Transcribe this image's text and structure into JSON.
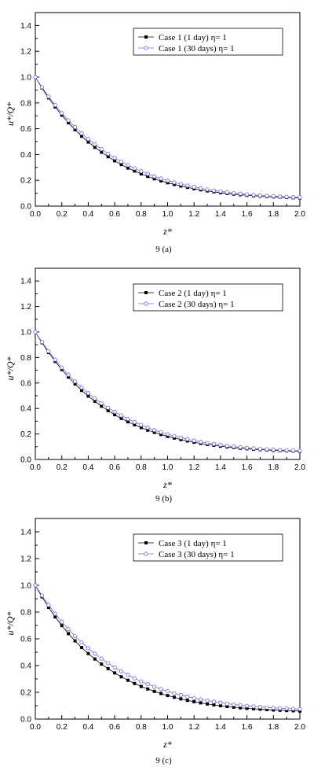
{
  "colors": {
    "series_1day": "#000000",
    "series_30day": "#6a6ad8",
    "axis": "#000000"
  },
  "chart_data": [
    {
      "type": "line",
      "caption": "9 (a)",
      "xlabel": "z*",
      "ylabel": "u*/Q*",
      "xlim": [
        0,
        2.0
      ],
      "ylim": [
        0,
        1.5
      ],
      "xticks": [
        "0.0",
        "0.2",
        "0.4",
        "0.6",
        "0.8",
        "1.0",
        "1.2",
        "1.4",
        "1.6",
        "1.8",
        "2.0"
      ],
      "yticks": [
        "0.0",
        "0.2",
        "0.4",
        "0.6",
        "0.8",
        "1.0",
        "1.2",
        "1.4"
      ],
      "legend_position": "top-right",
      "x": [
        0,
        0.05,
        0.1,
        0.15,
        0.2,
        0.25,
        0.3,
        0.35,
        0.4,
        0.45,
        0.5,
        0.55,
        0.6,
        0.65,
        0.7,
        0.75,
        0.8,
        0.85,
        0.9,
        0.95,
        1.0,
        1.05,
        1.1,
        1.15,
        1.2,
        1.25,
        1.3,
        1.35,
        1.4,
        1.45,
        1.5,
        1.55,
        1.6,
        1.65,
        1.7,
        1.75,
        1.8,
        1.85,
        1.9,
        1.95,
        2.0
      ],
      "series": [
        {
          "name": "Case 1 (1 day) η= 1",
          "marker": "filled-square",
          "values": [
            1.0,
            0.916,
            0.839,
            0.769,
            0.705,
            0.646,
            0.592,
            0.542,
            0.497,
            0.456,
            0.418,
            0.383,
            0.351,
            0.322,
            0.295,
            0.272,
            0.25,
            0.23,
            0.212,
            0.196,
            0.181,
            0.168,
            0.156,
            0.145,
            0.135,
            0.126,
            0.118,
            0.111,
            0.104,
            0.098,
            0.093,
            0.088,
            0.084,
            0.08,
            0.077,
            0.074,
            0.071,
            0.069,
            0.067,
            0.065,
            0.063
          ]
        },
        {
          "name": "Case 1 (30 days) η= 1",
          "marker": "open-circle",
          "values": [
            1.0,
            0.922,
            0.849,
            0.783,
            0.721,
            0.665,
            0.612,
            0.564,
            0.52,
            0.479,
            0.441,
            0.406,
            0.374,
            0.345,
            0.318,
            0.293,
            0.271,
            0.25,
            0.231,
            0.214,
            0.198,
            0.184,
            0.171,
            0.159,
            0.148,
            0.138,
            0.129,
            0.121,
            0.114,
            0.107,
            0.101,
            0.096,
            0.091,
            0.087,
            0.083,
            0.08,
            0.077,
            0.074,
            0.072,
            0.07,
            0.068
          ]
        }
      ]
    },
    {
      "type": "line",
      "caption": "9 (b)",
      "xlabel": "z*",
      "ylabel": "u*/Q*",
      "xlim": [
        0,
        2.0
      ],
      "ylim": [
        0,
        1.5
      ],
      "xticks": [
        "0.0",
        "0.2",
        "0.4",
        "0.6",
        "0.8",
        "1.0",
        "1.2",
        "1.4",
        "1.6",
        "1.8",
        "2.0"
      ],
      "yticks": [
        "0.0",
        "0.2",
        "0.4",
        "0.6",
        "0.8",
        "1.0",
        "1.2",
        "1.4"
      ],
      "legend_position": "top-right",
      "x": [
        0,
        0.05,
        0.1,
        0.15,
        0.2,
        0.25,
        0.3,
        0.35,
        0.4,
        0.45,
        0.5,
        0.55,
        0.6,
        0.65,
        0.7,
        0.75,
        0.8,
        0.85,
        0.9,
        0.95,
        1.0,
        1.05,
        1.1,
        1.15,
        1.2,
        1.25,
        1.3,
        1.35,
        1.4,
        1.45,
        1.5,
        1.55,
        1.6,
        1.65,
        1.7,
        1.75,
        1.8,
        1.85,
        1.9,
        1.95,
        2.0
      ],
      "series": [
        {
          "name": "Case 2 (1 day) η= 1",
          "marker": "filled-square",
          "values": [
            1.0,
            0.916,
            0.839,
            0.769,
            0.705,
            0.646,
            0.592,
            0.542,
            0.497,
            0.456,
            0.418,
            0.383,
            0.351,
            0.322,
            0.295,
            0.272,
            0.25,
            0.23,
            0.212,
            0.196,
            0.181,
            0.168,
            0.156,
            0.145,
            0.135,
            0.126,
            0.118,
            0.111,
            0.104,
            0.098,
            0.093,
            0.088,
            0.084,
            0.08,
            0.077,
            0.074,
            0.071,
            0.069,
            0.067,
            0.065,
            0.063
          ]
        },
        {
          "name": "Case 2 (30 days) η= 1",
          "marker": "open-circle",
          "values": [
            1.0,
            0.922,
            0.849,
            0.783,
            0.721,
            0.665,
            0.612,
            0.564,
            0.52,
            0.479,
            0.441,
            0.406,
            0.374,
            0.345,
            0.318,
            0.293,
            0.271,
            0.25,
            0.231,
            0.214,
            0.198,
            0.184,
            0.171,
            0.159,
            0.148,
            0.138,
            0.129,
            0.121,
            0.114,
            0.107,
            0.101,
            0.096,
            0.091,
            0.087,
            0.083,
            0.08,
            0.077,
            0.074,
            0.072,
            0.07,
            0.068
          ]
        }
      ]
    },
    {
      "type": "line",
      "caption": "9 (c)",
      "xlabel": "z*",
      "ylabel": "u*/Q*",
      "xlim": [
        0,
        2.0
      ],
      "ylim": [
        0,
        1.5
      ],
      "xticks": [
        "0.0",
        "0.2",
        "0.4",
        "0.6",
        "0.8",
        "1.0",
        "1.2",
        "1.4",
        "1.6",
        "1.8",
        "2.0"
      ],
      "yticks": [
        "0.0",
        "0.2",
        "0.4",
        "0.6",
        "0.8",
        "1.0",
        "1.2",
        "1.4"
      ],
      "legend_position": "top-right",
      "x": [
        0,
        0.05,
        0.1,
        0.15,
        0.2,
        0.25,
        0.3,
        0.35,
        0.4,
        0.45,
        0.5,
        0.55,
        0.6,
        0.65,
        0.7,
        0.75,
        0.8,
        0.85,
        0.9,
        0.95,
        1.0,
        1.05,
        1.1,
        1.15,
        1.2,
        1.25,
        1.3,
        1.35,
        1.4,
        1.45,
        1.5,
        1.55,
        1.6,
        1.65,
        1.7,
        1.75,
        1.8,
        1.85,
        1.9,
        1.95,
        2.0
      ],
      "series": [
        {
          "name": "Case 3 (1 day) η= 1",
          "marker": "filled-square",
          "values": [
            1.0,
            0.914,
            0.835,
            0.764,
            0.699,
            0.639,
            0.585,
            0.535,
            0.49,
            0.449,
            0.411,
            0.377,
            0.345,
            0.316,
            0.29,
            0.266,
            0.244,
            0.225,
            0.207,
            0.191,
            0.176,
            0.163,
            0.151,
            0.14,
            0.13,
            0.121,
            0.113,
            0.106,
            0.1,
            0.094,
            0.089,
            0.084,
            0.08,
            0.077,
            0.074,
            0.071,
            0.068,
            0.066,
            0.064,
            0.062,
            0.06
          ]
        },
        {
          "name": "Case 3 (30 days) η= 1",
          "marker": "open-circle",
          "values": [
            1.0,
            0.924,
            0.853,
            0.788,
            0.728,
            0.672,
            0.621,
            0.574,
            0.53,
            0.489,
            0.452,
            0.418,
            0.386,
            0.357,
            0.33,
            0.305,
            0.282,
            0.261,
            0.242,
            0.224,
            0.208,
            0.193,
            0.18,
            0.168,
            0.157,
            0.147,
            0.138,
            0.13,
            0.122,
            0.115,
            0.109,
            0.104,
            0.099,
            0.095,
            0.091,
            0.087,
            0.084,
            0.081,
            0.079,
            0.077,
            0.075
          ]
        }
      ]
    }
  ]
}
